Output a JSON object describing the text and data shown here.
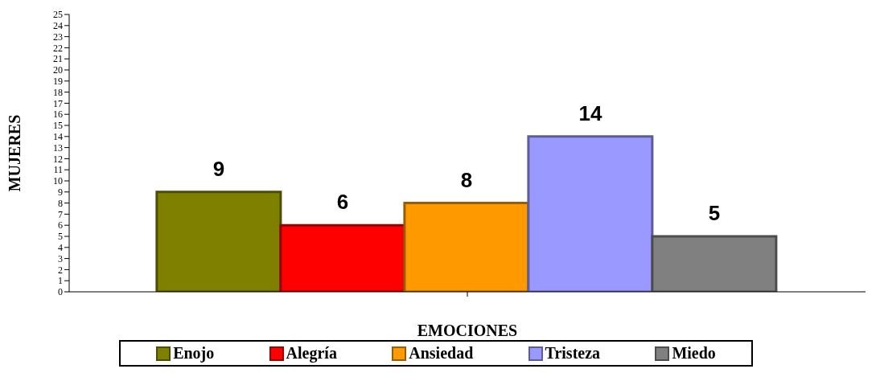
{
  "chart_data": {
    "type": "bar",
    "xlabel": "EMOCIONES",
    "ylabel": "MUJERES",
    "categories": [
      null
    ],
    "series": [
      {
        "name": "Enojo",
        "color": "#808000",
        "values": [
          9
        ]
      },
      {
        "name": "Alegría",
        "color": "#ff0000",
        "values": [
          6
        ]
      },
      {
        "name": "Ansiedad",
        "color": "#ff9900",
        "values": [
          8
        ]
      },
      {
        "name": "Tristeza",
        "color": "#9999ff",
        "values": [
          14
        ]
      },
      {
        "name": "Miedo",
        "color": "#808080",
        "values": [
          5
        ]
      }
    ],
    "ylim": [
      0,
      25
    ],
    "yticks": [
      0,
      1,
      2,
      3,
      4,
      5,
      6,
      7,
      8,
      9,
      10,
      11,
      12,
      13,
      14,
      15,
      16,
      17,
      18,
      19,
      20,
      21,
      22,
      23,
      24,
      25
    ],
    "data_labels": true,
    "legend": "bottom",
    "grid": false
  }
}
